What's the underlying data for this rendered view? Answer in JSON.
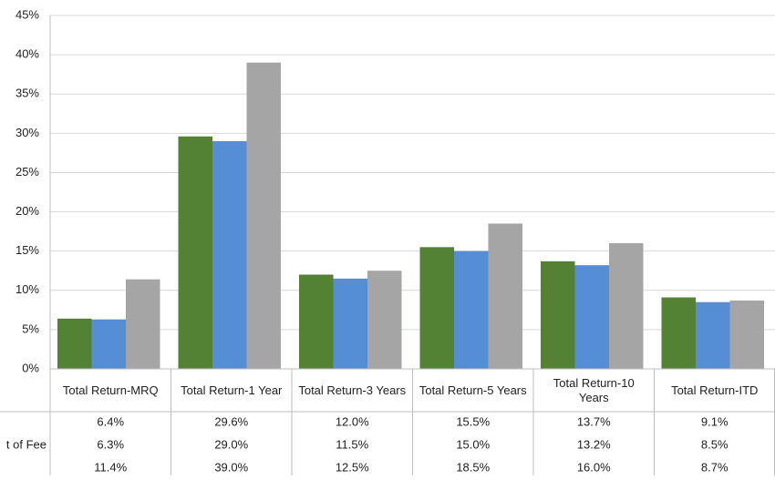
{
  "chart_data": {
    "type": "bar",
    "categories": [
      "Total Return-MRQ",
      "Total Return-1 Year",
      "Total Return-3 Years",
      "Total Return-5 Years",
      "Total Return-10 Years",
      "Total Return-ITD"
    ],
    "series": [
      {
        "color": "#548235",
        "values": [
          6.4,
          29.6,
          12.0,
          15.5,
          13.7,
          9.1
        ],
        "value_labels": [
          "6.4%",
          "29.6%",
          "12.0%",
          "15.5%",
          "13.7%",
          "9.1%"
        ]
      },
      {
        "name": "t of Fee",
        "color": "#558ed5",
        "values": [
          6.3,
          29.0,
          11.5,
          15.0,
          13.2,
          8.5
        ],
        "value_labels": [
          "6.3%",
          "29.0%",
          "11.5%",
          "15.0%",
          "13.2%",
          "8.5%"
        ]
      },
      {
        "color": "#a5a5a5",
        "values": [
          11.4,
          39.0,
          12.5,
          18.5,
          16.0,
          8.7
        ],
        "value_labels": [
          "11.4%",
          "39.0%",
          "12.5%",
          "18.5%",
          "16.0%",
          "8.7%"
        ]
      }
    ],
    "ylim": [
      0,
      45
    ],
    "yticks": [
      {
        "value": 0,
        "label": "0%"
      },
      {
        "value": 5,
        "label": "5%"
      },
      {
        "value": 10,
        "label": "10%"
      },
      {
        "value": 15,
        "label": "15%"
      },
      {
        "value": 20,
        "label": "20%"
      },
      {
        "value": 25,
        "label": "25%"
      },
      {
        "value": 30,
        "label": "30%"
      },
      {
        "value": 35,
        "label": "35%"
      },
      {
        "value": 40,
        "label": "40%"
      },
      {
        "value": 45,
        "label": "45%"
      }
    ],
    "grid": true
  }
}
